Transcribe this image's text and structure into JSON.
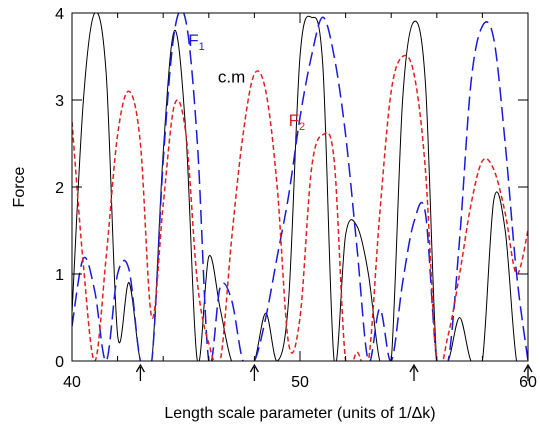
{
  "chart_data": {
    "type": "line",
    "title": "",
    "xlabel": "Length scale parameter (units of 1/Δk)",
    "ylabel": "Force",
    "xlim": [
      40,
      60
    ],
    "ylim": [
      0,
      4
    ],
    "x_ticks": [
      "40",
      "50",
      "60"
    ],
    "y_ticks": [
      "0",
      "1",
      "2",
      "3",
      "4"
    ],
    "grid": false,
    "legend": "none",
    "annotations": [
      {
        "text": "F",
        "sub": "1",
        "x": 45.1,
        "y": 3.62,
        "color": "#1a1adc"
      },
      {
        "text": "c.m",
        "x": 46.4,
        "y": 3.2,
        "color": "#000000"
      },
      {
        "text": "F",
        "sub": "2",
        "x": 49.5,
        "y": 2.7,
        "color": "#e02020"
      }
    ],
    "arrow_x": [
      43,
      48,
      55,
      60
    ],
    "series": [
      {
        "style": "solid",
        "color": "#000000",
        "x": [
          40.0,
          40.5,
          41.0,
          41.5,
          42.0,
          42.5,
          43.0,
          43.5,
          44.0,
          44.5,
          45.0,
          45.5,
          46.0,
          46.5,
          47.0,
          47.5,
          48.0,
          48.5,
          49.0,
          49.5,
          50.0,
          50.5,
          51.0,
          51.5,
          52.0,
          52.5,
          53.0,
          53.5,
          54.0,
          54.5,
          55.0,
          55.5,
          56.0,
          56.5,
          57.0,
          57.5,
          58.0,
          58.5,
          59.0,
          59.5,
          60.0
        ],
        "y": [
          0.55,
          3.0,
          4.0,
          3.3,
          0.3,
          0.9,
          0.0,
          0.0,
          2.4,
          3.8,
          2.6,
          0.0,
          1.2,
          0.6,
          0.0,
          0.0,
          0.0,
          0.55,
          0.0,
          0.7,
          3.5,
          3.95,
          3.4,
          0.0,
          1.45,
          1.55,
          1.0,
          0.0,
          0.0,
          3.0,
          3.9,
          3.2,
          0.0,
          0.0,
          0.5,
          0.0,
          0.0,
          1.85,
          1.5,
          0.0,
          0.0
        ]
      },
      {
        "style": "long-dash",
        "color": "#1a1adc",
        "x": [
          40.0,
          40.5,
          41.0,
          41.5,
          42.0,
          42.5,
          43.0,
          43.5,
          44.0,
          44.5,
          45.0,
          45.5,
          46.0,
          46.5,
          47.0,
          47.5,
          48.0,
          48.5,
          49.0,
          49.5,
          50.0,
          50.5,
          51.0,
          51.5,
          52.0,
          52.5,
          53.0,
          53.5,
          54.0,
          54.5,
          55.0,
          55.5,
          56.0,
          56.5,
          57.0,
          57.5,
          58.0,
          58.5,
          59.0,
          59.5,
          60.0
        ],
        "y": [
          0.4,
          1.18,
          0.8,
          0.0,
          1.0,
          1.05,
          0.0,
          0.0,
          2.3,
          3.8,
          3.9,
          2.5,
          0.0,
          0.85,
          0.7,
          0.0,
          0.0,
          0.5,
          1.2,
          1.9,
          2.8,
          3.5,
          3.95,
          3.5,
          2.6,
          1.3,
          0.0,
          0.6,
          0.0,
          0.9,
          1.6,
          1.7,
          0.0,
          0.0,
          1.4,
          3.2,
          3.85,
          3.7,
          2.5,
          1.0,
          0.0
        ]
      },
      {
        "style": "short-dash",
        "color": "#e02020",
        "x": [
          40.0,
          40.5,
          41.0,
          41.5,
          42.0,
          42.5,
          43.0,
          43.5,
          44.0,
          44.5,
          45.0,
          45.5,
          46.0,
          46.5,
          47.0,
          47.5,
          48.0,
          48.5,
          49.0,
          49.5,
          50.0,
          50.5,
          51.0,
          51.5,
          52.0,
          52.5,
          53.0,
          53.5,
          54.0,
          54.5,
          55.0,
          55.5,
          56.0,
          56.5,
          57.0,
          57.5,
          58.0,
          58.5,
          59.0,
          59.5,
          60.0
        ],
        "y": [
          2.75,
          1.1,
          0.0,
          1.2,
          2.6,
          3.1,
          2.5,
          0.5,
          1.8,
          2.95,
          2.6,
          0.9,
          0.2,
          0.0,
          1.4,
          2.6,
          3.3,
          3.1,
          2.0,
          0.2,
          0.5,
          2.2,
          2.6,
          2.3,
          0.0,
          0.1,
          0.0,
          1.7,
          3.1,
          3.5,
          3.3,
          2.2,
          0.0,
          0.3,
          1.0,
          1.8,
          2.3,
          2.2,
          1.7,
          1.0,
          1.5
        ]
      }
    ]
  }
}
